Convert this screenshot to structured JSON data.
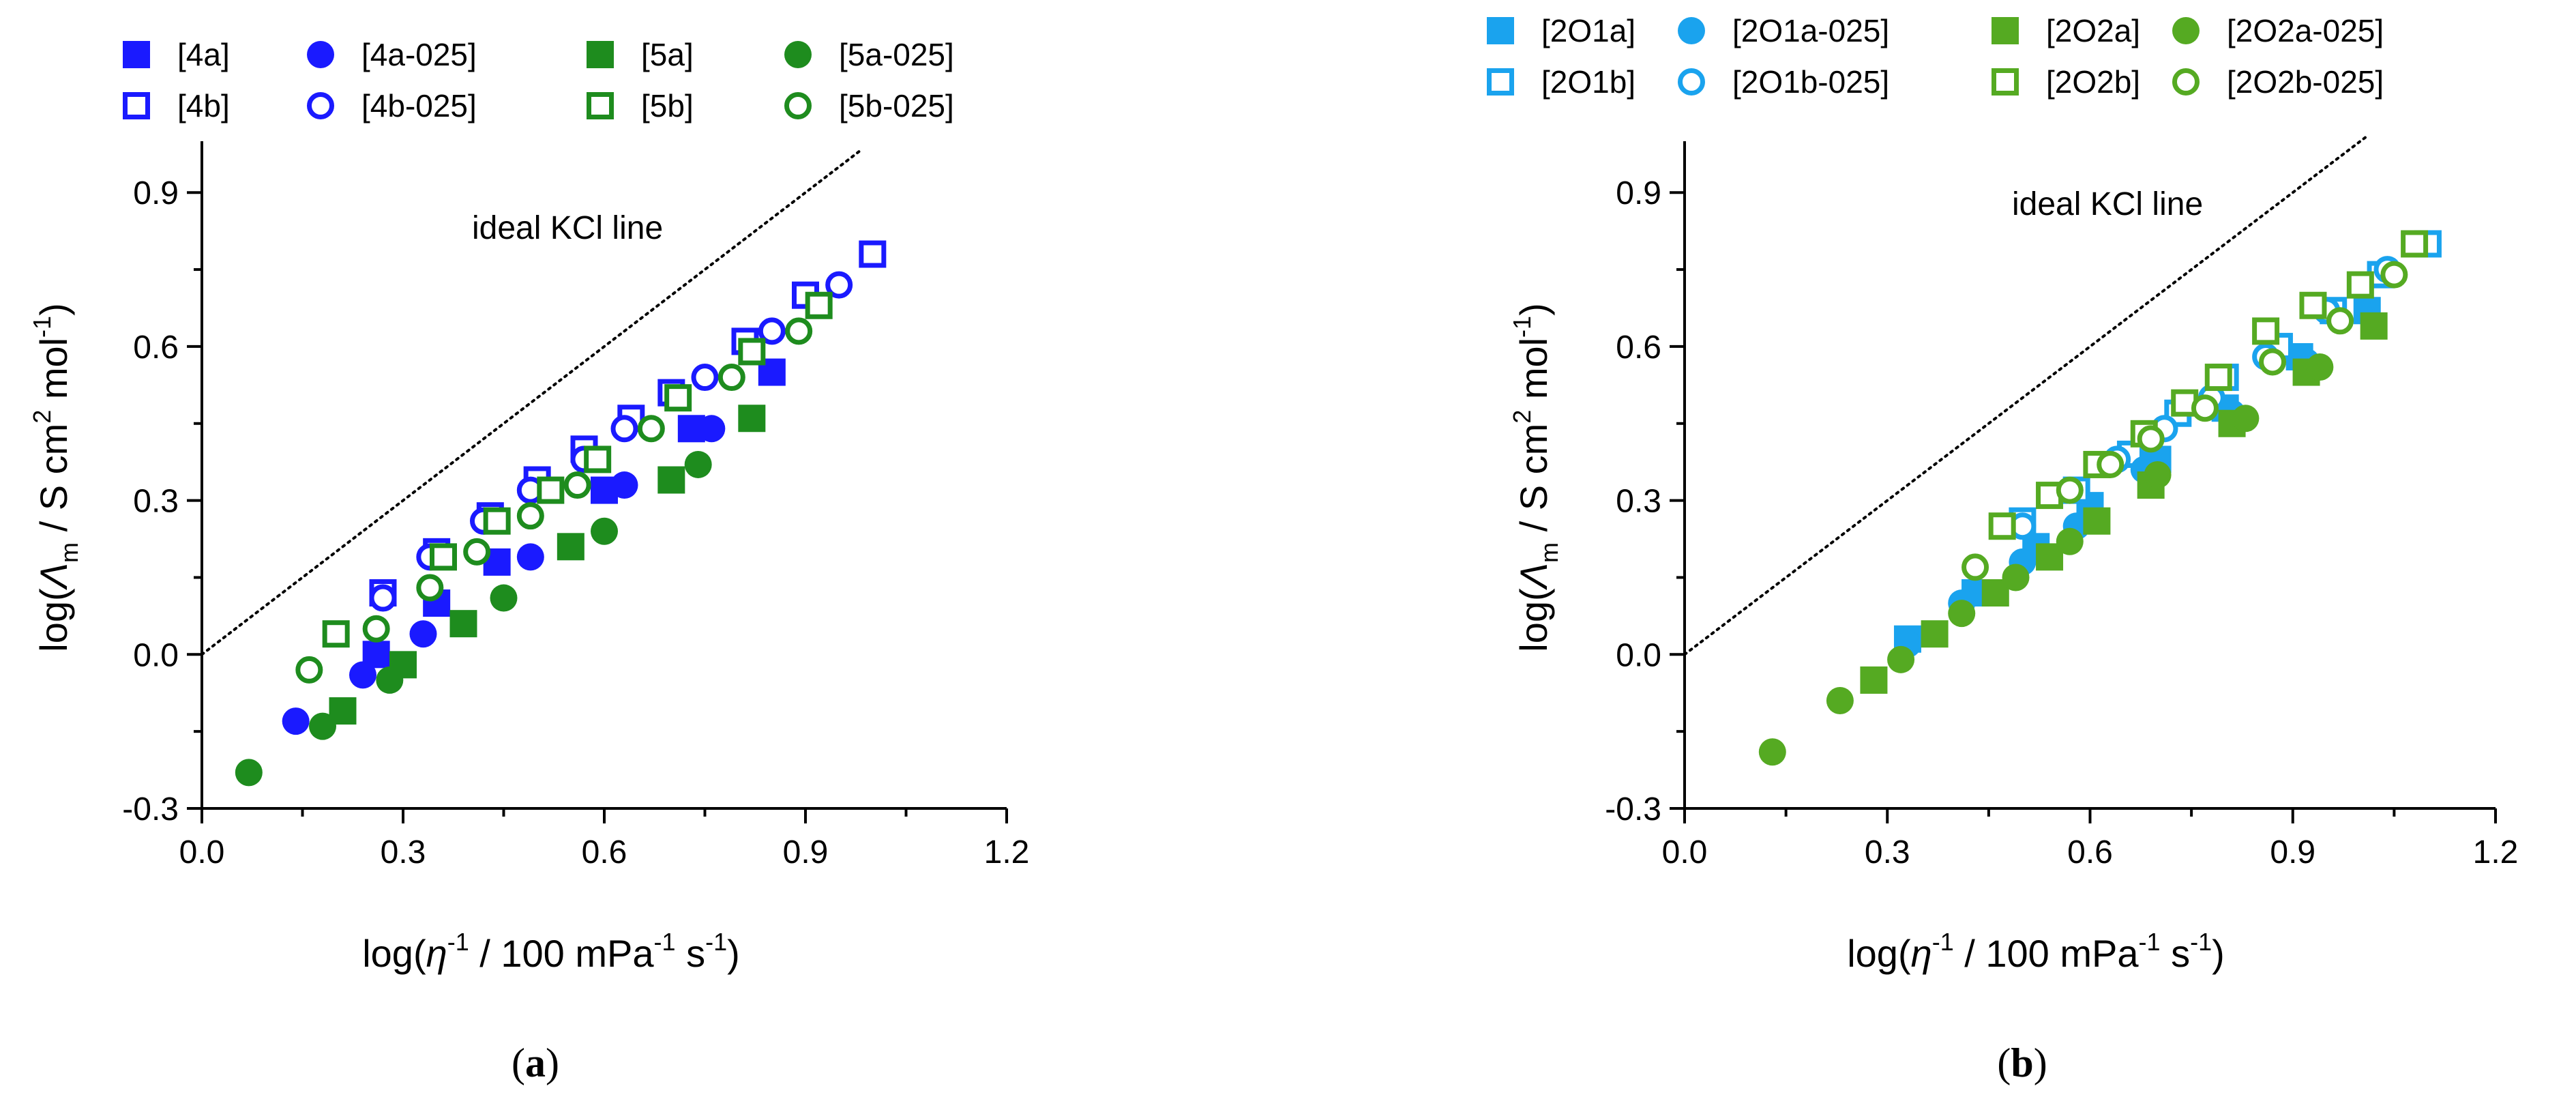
{
  "chart_data": [
    {
      "type": "scatter",
      "panel_label": "a",
      "xlabel": "log(η⁻¹ / 100 mPa⁻¹ s⁻¹)",
      "ylabel": "log(Λm / S cm² mol⁻¹)",
      "xlim": [
        0.0,
        1.2
      ],
      "ylim": [
        -0.3,
        1.0
      ],
      "xticks": [
        "0.0",
        "0.3",
        "0.6",
        "0.9",
        "1.2"
      ],
      "yticks": [
        "-0.3",
        "0.0",
        "0.3",
        "0.6",
        "0.9"
      ],
      "grid": false,
      "legend_position": "top",
      "annotation": "ideal KCl line",
      "reference_line": {
        "name": "ideal KCl line",
        "x": [
          0.0,
          0.98
        ],
        "y": [
          0.0,
          0.98
        ],
        "style": "dotted"
      },
      "series": [
        {
          "name": "[4a]",
          "color": "#1a1aff",
          "marker": "square",
          "filled": true,
          "x": [
            0.26,
            0.35,
            0.44,
            0.6,
            0.73,
            0.85
          ],
          "y": [
            0.0,
            0.1,
            0.18,
            0.32,
            0.44,
            0.55
          ]
        },
        {
          "name": "[4b]",
          "color": "#1a1aff",
          "marker": "square",
          "filled": false,
          "x": [
            0.27,
            0.35,
            0.43,
            0.5,
            0.57,
            0.64,
            0.7,
            0.81,
            0.9,
            1.0
          ],
          "y": [
            0.12,
            0.2,
            0.27,
            0.34,
            0.4,
            0.46,
            0.51,
            0.61,
            0.7,
            0.78
          ]
        },
        {
          "name": "[4a-025]",
          "color": "#1a1aff",
          "marker": "circle",
          "filled": true,
          "x": [
            0.14,
            0.24,
            0.33,
            0.49,
            0.63,
            0.76
          ],
          "y": [
            -0.13,
            -0.04,
            0.04,
            0.19,
            0.33,
            0.44
          ]
        },
        {
          "name": "[4b-025]",
          "color": "#1a1aff",
          "marker": "circle",
          "filled": false,
          "x": [
            0.27,
            0.34,
            0.42,
            0.49,
            0.57,
            0.63,
            0.75,
            0.85,
            0.95
          ],
          "y": [
            0.11,
            0.19,
            0.26,
            0.32,
            0.38,
            0.44,
            0.54,
            0.63,
            0.72
          ]
        },
        {
          "name": "[5a]",
          "color": "#1e8c1e",
          "marker": "square",
          "filled": true,
          "x": [
            0.21,
            0.3,
            0.39,
            0.55,
            0.7,
            0.82
          ],
          "y": [
            -0.11,
            -0.02,
            0.06,
            0.21,
            0.34,
            0.46
          ]
        },
        {
          "name": "[5b]",
          "color": "#1e8c1e",
          "marker": "square",
          "filled": false,
          "x": [
            0.2,
            0.36,
            0.44,
            0.52,
            0.59,
            0.71,
            0.82,
            0.92
          ],
          "y": [
            0.04,
            0.19,
            0.26,
            0.32,
            0.38,
            0.5,
            0.59,
            0.68
          ]
        },
        {
          "name": "[5a-025]",
          "color": "#1e8c1e",
          "marker": "circle",
          "filled": true,
          "x": [
            0.07,
            0.18,
            0.28,
            0.45,
            0.6,
            0.74
          ],
          "y": [
            -0.23,
            -0.14,
            -0.05,
            0.11,
            0.24,
            0.37
          ]
        },
        {
          "name": "[5b-025]",
          "color": "#1e8c1e",
          "marker": "circle",
          "filled": false,
          "x": [
            0.16,
            0.26,
            0.34,
            0.41,
            0.49,
            0.56,
            0.67,
            0.79,
            0.89
          ],
          "y": [
            -0.03,
            0.05,
            0.13,
            0.2,
            0.27,
            0.33,
            0.44,
            0.54,
            0.63
          ]
        }
      ]
    },
    {
      "type": "scatter",
      "panel_label": "b",
      "xlabel": "log(η⁻¹ / 100 mPa⁻¹ s⁻¹)",
      "ylabel": "log(Λm / S cm² mol⁻¹)",
      "xlim": [
        0.0,
        1.2
      ],
      "ylim": [
        -0.3,
        1.0
      ],
      "xticks": [
        "0.0",
        "0.3",
        "0.6",
        "0.9",
        "1.2"
      ],
      "yticks": [
        "-0.3",
        "0.0",
        "0.3",
        "0.6",
        "0.9"
      ],
      "grid": false,
      "legend_position": "top",
      "annotation": "ideal KCl line",
      "reference_line": {
        "name": "ideal KCl line",
        "x": [
          0.0,
          1.01
        ],
        "y": [
          0.0,
          1.01
        ],
        "style": "dotted"
      },
      "series": [
        {
          "name": "[2O1a]",
          "color": "#1aa3ee",
          "marker": "square",
          "filled": true,
          "x": [
            0.33,
            0.43,
            0.52,
            0.6,
            0.7,
            0.8,
            0.91,
            1.01
          ],
          "y": [
            0.03,
            0.12,
            0.21,
            0.29,
            0.38,
            0.48,
            0.58,
            0.67
          ]
        },
        {
          "name": "[2O1b]",
          "color": "#1aa3ee",
          "marker": "square",
          "filled": false,
          "x": [
            0.5,
            0.58,
            0.66,
            0.73,
            0.8,
            0.88,
            0.96,
            1.03,
            1.1
          ],
          "y": [
            0.26,
            0.32,
            0.39,
            0.47,
            0.54,
            0.6,
            0.67,
            0.74,
            0.8
          ]
        },
        {
          "name": "[2O1a-025]",
          "color": "#1aa3ee",
          "marker": "circle",
          "filled": true,
          "x": [
            0.33,
            0.41,
            0.5,
            0.58,
            0.68,
            0.81,
            0.92
          ],
          "y": [
            0.02,
            0.1,
            0.18,
            0.25,
            0.36,
            0.47,
            0.57
          ]
        },
        {
          "name": "[2O1b-025]",
          "color": "#1aa3ee",
          "marker": "circle",
          "filled": false,
          "x": [
            0.5,
            0.57,
            0.64,
            0.71,
            0.78,
            0.86,
            0.95,
            1.04
          ],
          "y": [
            0.25,
            0.32,
            0.38,
            0.44,
            0.5,
            0.58,
            0.67,
            0.75
          ]
        },
        {
          "name": "[2O2a]",
          "color": "#55aa22",
          "marker": "square",
          "filled": true,
          "x": [
            0.28,
            0.37,
            0.46,
            0.54,
            0.61,
            0.69,
            0.81,
            0.92,
            1.02
          ],
          "y": [
            -0.05,
            0.04,
            0.12,
            0.19,
            0.26,
            0.33,
            0.45,
            0.55,
            0.64
          ]
        },
        {
          "name": "[2O2b]",
          "color": "#55aa22",
          "marker": "square",
          "filled": false,
          "x": [
            0.47,
            0.54,
            0.61,
            0.68,
            0.74,
            0.79,
            0.86,
            0.93,
            1.0,
            1.08
          ],
          "y": [
            0.25,
            0.31,
            0.37,
            0.43,
            0.49,
            0.54,
            0.63,
            0.68,
            0.72,
            0.8
          ]
        },
        {
          "name": "[2O2a-025]",
          "color": "#55aa22",
          "marker": "circle",
          "filled": true,
          "x": [
            0.13,
            0.23,
            0.32,
            0.41,
            0.49,
            0.57,
            0.7,
            0.83,
            0.94
          ],
          "y": [
            -0.19,
            -0.09,
            -0.01,
            0.08,
            0.15,
            0.22,
            0.35,
            0.46,
            0.56
          ]
        },
        {
          "name": "[2O2b-025]",
          "color": "#55aa22",
          "marker": "circle",
          "filled": false,
          "x": [
            0.43,
            0.57,
            0.63,
            0.69,
            0.77,
            0.87,
            0.97,
            1.05
          ],
          "y": [
            0.17,
            0.32,
            0.37,
            0.42,
            0.48,
            0.57,
            0.65,
            0.74
          ]
        }
      ]
    }
  ]
}
